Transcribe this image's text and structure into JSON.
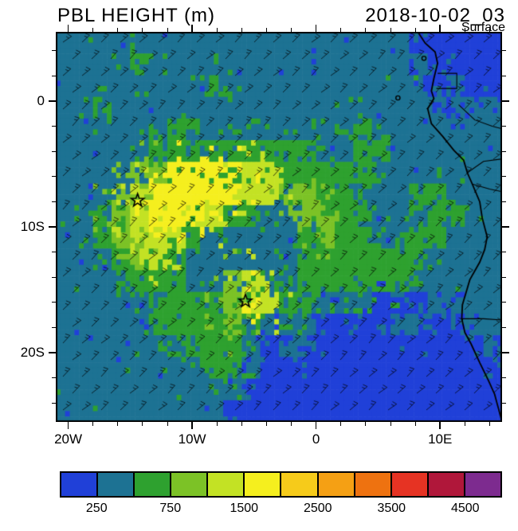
{
  "header": {
    "title": "PBL HEIGHT (m)",
    "datetime": "2018-10-02_03",
    "level": "Surface"
  },
  "axes": {
    "x": {
      "range": [
        -21,
        15
      ],
      "major_ticks": [
        {
          "value": -20,
          "label": "20W"
        },
        {
          "value": -10,
          "label": "10W"
        },
        {
          "value": 0,
          "label": "0"
        },
        {
          "value": 10,
          "label": "10E"
        }
      ],
      "minor_interval": 2
    },
    "y": {
      "range": [
        5.5,
        -25.5
      ],
      "major_ticks": [
        {
          "value": 0,
          "label": "0"
        },
        {
          "value": -10,
          "label": "10S"
        },
        {
          "value": -20,
          "label": "20S"
        }
      ],
      "minor_interval": 2
    }
  },
  "colorbar": {
    "colors": [
      "#2040d8",
      "#1d7293",
      "#2ea12f",
      "#7cc226",
      "#c3e224",
      "#f5ef1e",
      "#f6cb1a",
      "#f5a014",
      "#ee7210",
      "#e63323",
      "#b0173a",
      "#7d2b8f"
    ],
    "cell_boundaries_m": [
      250,
      500,
      750,
      1000,
      1500,
      2000,
      2500,
      3000,
      3500,
      4000,
      4500
    ],
    "labels": [
      {
        "text": "250",
        "boundary_index": 1
      },
      {
        "text": "750",
        "boundary_index": 3
      },
      {
        "text": "1500",
        "boundary_index": 5
      },
      {
        "text": "2500",
        "boundary_index": 7
      },
      {
        "text": "3500",
        "boundary_index": 9
      },
      {
        "text": "4500",
        "boundary_index": 11
      }
    ]
  },
  "chart_data": {
    "type": "heatmap",
    "title": "PBL HEIGHT (m)",
    "units": "m",
    "valid_time": "2018-10-02_03",
    "level": "Surface",
    "grid": {
      "lon_range": [
        -21,
        15
      ],
      "lat_range": [
        5.5,
        -25.5
      ],
      "ncols": 24,
      "nrows": 18,
      "level_center_values_m": [
        125,
        375,
        625,
        875,
        1250,
        1750,
        2250,
        2750,
        3250,
        3750,
        4250,
        4750
      ],
      "level_index_rows": [
        "111111111111111111100000",
        "111121111111111111110000",
        "111111112111111111110100",
        "112111111111111111111011",
        "111111211111111121111111",
        "111112222222221122111111",
        "111133555544222221111111",
        "111345555544332211122111",
        "112345554221133221112211",
        "112344421111123221122111",
        "111234211111122222221111",
        "111122211342122222211111",
        "111112222354221110001111",
        "111112222321110000110011",
        "111111122210110000000001",
        "111111112210000000000000",
        "111111111100000000000000",
        "111111111000000000000000"
      ]
    },
    "markers": [
      {
        "symbol": "star",
        "lon": -14.4,
        "lat": -7.9
      },
      {
        "symbol": "star",
        "lon": -5.7,
        "lat": -15.9
      }
    ],
    "wind_overlay": {
      "symbol": "barb",
      "coverage": "full domain"
    }
  },
  "geo": {
    "coastline": [
      [
        8.2,
        5.5
      ],
      [
        8.8,
        4.6
      ],
      [
        9.6,
        3.9
      ],
      [
        9.8,
        3.0
      ],
      [
        9.5,
        1.8
      ],
      [
        9.3,
        0.8
      ],
      [
        9.5,
        0.2
      ],
      [
        9.0,
        -0.6
      ],
      [
        9.3,
        -1.8
      ],
      [
        10.2,
        -2.8
      ],
      [
        11.1,
        -3.9
      ],
      [
        11.9,
        -4.7
      ],
      [
        12.2,
        -5.7
      ],
      [
        12.6,
        -6.6
      ],
      [
        13.2,
        -8.0
      ],
      [
        13.4,
        -9.3
      ],
      [
        13.8,
        -10.8
      ],
      [
        13.6,
        -11.8
      ],
      [
        13.2,
        -12.8
      ],
      [
        12.4,
        -14.2
      ],
      [
        12.1,
        -15.2
      ],
      [
        11.8,
        -16.2
      ],
      [
        11.75,
        -17.3
      ],
      [
        12.0,
        -18.4
      ],
      [
        12.5,
        -19.3
      ],
      [
        13.2,
        -20.8
      ],
      [
        13.9,
        -22.2
      ],
      [
        14.4,
        -23.3
      ],
      [
        14.7,
        -24.4
      ],
      [
        15.0,
        -25.5
      ]
    ],
    "borders": [
      [
        [
          9.8,
          2.2
        ],
        [
          11.35,
          2.2
        ],
        [
          11.35,
          1.0
        ],
        [
          9.7,
          1.0
        ]
      ],
      [
        [
          11.5,
          -0.3
        ],
        [
          12.8,
          -1.5
        ],
        [
          14.2,
          -2.0
        ],
        [
          15.0,
          -2.2
        ]
      ],
      [
        [
          12.2,
          -5.7
        ],
        [
          13.5,
          -4.8
        ],
        [
          15.0,
          -4.6
        ]
      ],
      [
        [
          12.6,
          -6.6
        ],
        [
          14.0,
          -7.0
        ],
        [
          15.0,
          -7.2
        ]
      ],
      [
        [
          11.75,
          -17.3
        ],
        [
          13.5,
          -17.3
        ],
        [
          15.0,
          -17.4
        ]
      ]
    ],
    "islands": [
      [
        6.6,
        0.25
      ],
      [
        8.7,
        3.4
      ]
    ]
  }
}
